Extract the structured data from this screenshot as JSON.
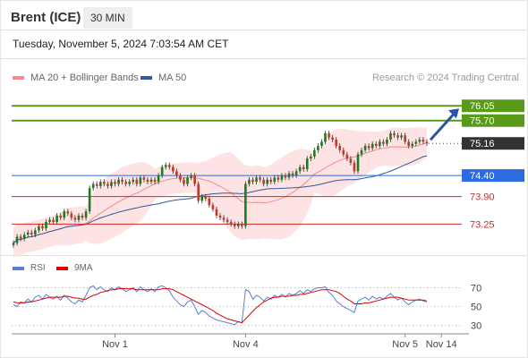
{
  "header": {
    "title": "Brent (ICE)",
    "timeframe": "30 MIN",
    "datetime": "Tuesday, November 5, 2024 7:03:54 AM CET"
  },
  "legend": {
    "bollinger": {
      "label": "MA 20 + Bollinger Bands",
      "color": "#f28b8b"
    },
    "ma50": {
      "label": "MA 50",
      "color": "#2f5a9c"
    },
    "credit": "Research © 2024 Trading Central"
  },
  "rsi_legend": {
    "rsi": {
      "label": "RSI",
      "color": "#5b7fcf"
    },
    "ma": {
      "label": "9MA",
      "color": "#e00000"
    }
  },
  "chart_data": [
    {
      "type": "candlestick",
      "ylim": [
        72.6,
        76.5
      ],
      "price_levels": [
        {
          "value": 76.05,
          "label": "76.05",
          "kind": "resistance",
          "color": "#5a9a1a"
        },
        {
          "value": 75.7,
          "label": "75.70",
          "kind": "resistance",
          "color": "#5a9a1a"
        },
        {
          "value": 75.16,
          "label": "75.16",
          "kind": "last-price",
          "color": "#333333"
        },
        {
          "value": 74.4,
          "label": "74.40",
          "kind": "pivot",
          "color": "#2d6be0"
        },
        {
          "value": 73.9,
          "label": "73.90",
          "kind": "support",
          "color": "#d62828"
        },
        {
          "value": 73.25,
          "label": "73.25",
          "kind": "support",
          "color": "#d62828"
        }
      ],
      "closes": [
        72.8,
        72.95,
        72.9,
        73.0,
        73.05,
        73.0,
        73.1,
        73.2,
        73.15,
        73.3,
        73.35,
        73.3,
        73.45,
        73.4,
        73.55,
        73.5,
        73.4,
        73.35,
        73.45,
        73.4,
        73.55,
        74.1,
        74.2,
        74.15,
        74.25,
        74.2,
        74.15,
        74.25,
        74.2,
        74.3,
        74.25,
        74.2,
        74.25,
        74.3,
        74.2,
        74.35,
        74.3,
        74.25,
        74.3,
        74.25,
        74.4,
        74.6,
        74.65,
        74.6,
        74.5,
        74.4,
        74.3,
        74.2,
        74.35,
        74.4,
        74.2,
        73.8,
        73.9,
        73.85,
        73.7,
        73.6,
        73.45,
        73.4,
        73.35,
        73.3,
        73.25,
        73.2,
        73.25,
        73.2,
        74.2,
        74.3,
        74.25,
        74.35,
        74.3,
        74.2,
        74.3,
        74.25,
        74.35,
        74.3,
        74.4,
        74.35,
        74.45,
        74.4,
        74.5,
        74.6,
        74.55,
        74.8,
        74.85,
        75.0,
        75.1,
        75.2,
        75.4,
        75.3,
        75.25,
        75.1,
        75.0,
        74.9,
        74.8,
        74.7,
        74.5,
        74.9,
        75.0,
        75.1,
        75.05,
        75.15,
        75.1,
        75.2,
        75.15,
        75.25,
        75.4,
        75.35,
        75.3,
        75.35,
        75.2,
        75.1,
        75.15,
        75.2,
        75.25,
        75.2,
        75.16
      ],
      "forecast": {
        "from": 75.16,
        "to": 76.05
      },
      "x_ticks": [
        "Nov 1",
        "Nov 4",
        "Nov 5",
        "Nov 14"
      ]
    },
    {
      "type": "line",
      "title": "RSI",
      "ylim": [
        25,
        80
      ],
      "y_ticks": [
        "70",
        "50",
        "30"
      ],
      "series": [
        {
          "name": "RSI",
          "values": [
            52,
            50,
            55,
            54,
            58,
            55,
            60,
            62,
            58,
            63,
            60,
            58,
            61,
            57,
            62,
            59,
            55,
            53,
            57,
            55,
            62,
            70,
            72,
            68,
            71,
            68,
            66,
            70,
            68,
            71,
            69,
            66,
            68,
            70,
            66,
            71,
            68,
            66,
            69,
            66,
            71,
            72,
            70,
            67,
            60,
            56,
            52,
            50,
            55,
            57,
            50,
            42,
            46,
            44,
            40,
            38,
            36,
            35,
            34,
            33,
            32,
            31,
            34,
            33,
            68,
            66,
            58,
            62,
            60,
            56,
            60,
            58,
            62,
            60,
            63,
            60,
            64,
            62,
            64,
            67,
            64,
            68,
            66,
            69,
            70,
            70,
            71,
            65,
            62,
            56,
            53,
            50,
            48,
            46,
            44,
            56,
            58,
            60,
            57,
            61,
            58,
            60,
            58,
            61,
            64,
            60,
            57,
            59,
            55,
            52,
            55,
            57,
            58,
            56,
            55
          ]
        },
        {
          "name": "9MA",
          "values": [
            55,
            54,
            54,
            54,
            55,
            55,
            56,
            57,
            58,
            59,
            60,
            60,
            60,
            60,
            61,
            61,
            60,
            59,
            59,
            58,
            58,
            60,
            62,
            63,
            65,
            66,
            67,
            68,
            68,
            69,
            69,
            69,
            69,
            69,
            68,
            68,
            68,
            68,
            68,
            68,
            68,
            69,
            69,
            69,
            68,
            66,
            64,
            62,
            60,
            58,
            56,
            54,
            52,
            50,
            48,
            46,
            43,
            41,
            39,
            37,
            36,
            35,
            34,
            33,
            37,
            41,
            45,
            49,
            52,
            55,
            57,
            59,
            60,
            60,
            61,
            61,
            61,
            62,
            62,
            63,
            63,
            64,
            65,
            66,
            67,
            68,
            68,
            68,
            67,
            66,
            64,
            61,
            58,
            56,
            53,
            53,
            53,
            54,
            54,
            55,
            56,
            57,
            58,
            59,
            60,
            60,
            60,
            59,
            58,
            57,
            57,
            57,
            57,
            57,
            56
          ]
        }
      ]
    }
  ]
}
